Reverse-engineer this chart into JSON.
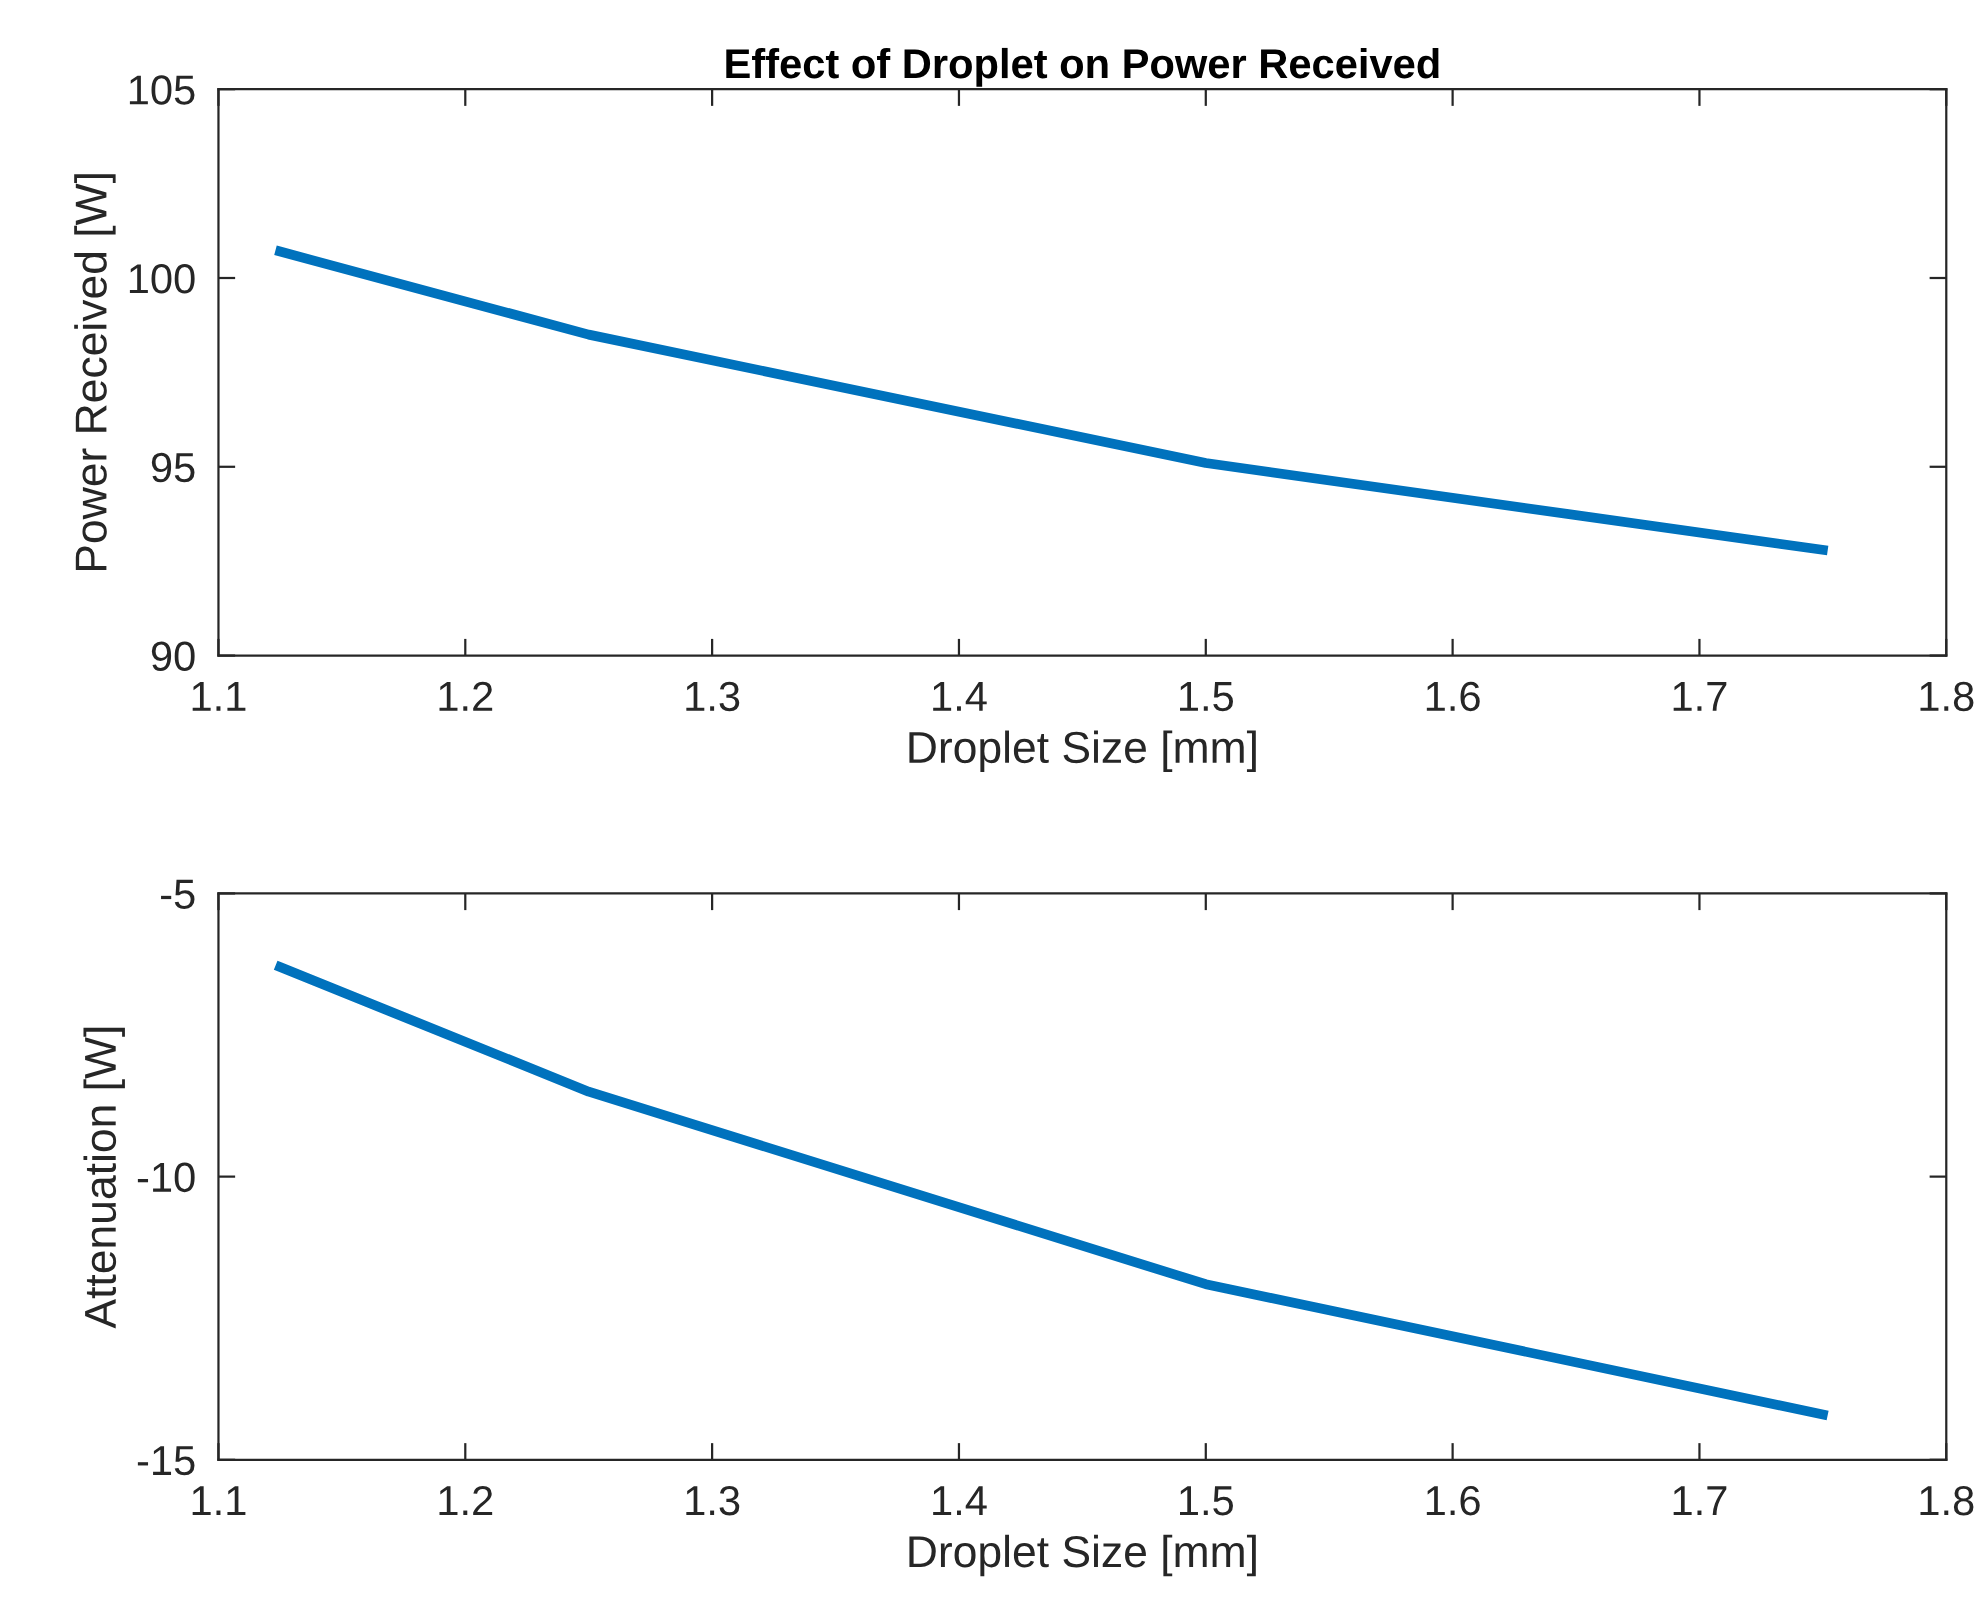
{
  "chart_data": [
    {
      "type": "line",
      "title": "Effect of Droplet on Power Received",
      "xlabel": "Droplet Size [mm]",
      "ylabel": "Power Received [W]",
      "x": [
        1.125,
        1.25,
        1.5,
        1.75
      ],
      "series": [
        {
          "color": "#0072bd",
          "values": [
            100.7,
            98.5,
            95.1,
            92.8
          ]
        }
      ],
      "xlim": [
        1.1,
        1.8
      ],
      "xticks": [
        1.1,
        1.2,
        1.3,
        1.4,
        1.5,
        1.6,
        1.7,
        1.8
      ],
      "ylim": [
        90,
        105
      ],
      "yticks": [
        90,
        95,
        100,
        105
      ],
      "grid": false,
      "legend": false
    },
    {
      "type": "line",
      "xlabel": "Droplet Size [mm]",
      "ylabel": "Attenuation [W]",
      "x": [
        1.125,
        1.25,
        1.5,
        1.75
      ],
      "series": [
        {
          "color": "#0072bd",
          "values": [
            -6.3,
            -8.5,
            -11.9,
            -14.2
          ]
        }
      ],
      "xlim": [
        1.1,
        1.8
      ],
      "xticks": [
        1.1,
        1.2,
        1.3,
        1.4,
        1.5,
        1.6,
        1.7,
        1.8
      ],
      "ylim": [
        -15,
        -5
      ],
      "yticks": [
        -15,
        -10,
        -5
      ],
      "grid": false,
      "legend": false
    }
  ]
}
